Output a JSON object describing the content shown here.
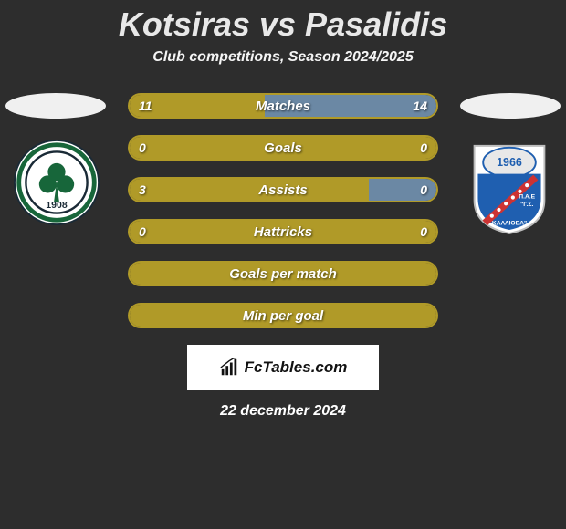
{
  "title_parts": {
    "p1": "Kotsiras",
    "vs": "vs",
    "p2": "Pasalidis"
  },
  "subtitle": "Club competitions, Season 2024/2025",
  "colors": {
    "left_fill": "#b09a28",
    "right_fill": "#6b88a4",
    "border": "#b09a28",
    "bg": "#2d2d2d"
  },
  "bars": [
    {
      "label": "Matches",
      "left_val": "11",
      "right_val": "14",
      "left_pct": 44,
      "right_pct": 56,
      "has_right": true
    },
    {
      "label": "Goals",
      "left_val": "0",
      "right_val": "0",
      "left_pct": 100,
      "right_pct": 0,
      "has_right": false
    },
    {
      "label": "Assists",
      "left_val": "3",
      "right_val": "0",
      "left_pct": 78,
      "right_pct": 22,
      "has_right": true
    },
    {
      "label": "Hattricks",
      "left_val": "0",
      "right_val": "0",
      "left_pct": 100,
      "right_pct": 0,
      "has_right": false
    },
    {
      "label": "Goals per match",
      "left_val": "",
      "right_val": "",
      "left_pct": 100,
      "right_pct": 0,
      "has_right": false
    },
    {
      "label": "Min per goal",
      "left_val": "",
      "right_val": "",
      "left_pct": 100,
      "right_pct": 0,
      "has_right": false
    }
  ],
  "watermark_text": "FcTables.com",
  "date_text": "22 december 2024",
  "left_crest": {
    "ring": "#17663a",
    "year": "1908"
  },
  "right_crest": {
    "shield": "#1f5fb0",
    "year": "1966",
    "greek_top": "Π.Α.Ε",
    "greek_mid": "\"Γ.Σ.",
    "greek_bot": "ΚΑΛΛΙΘΕΑ\""
  }
}
